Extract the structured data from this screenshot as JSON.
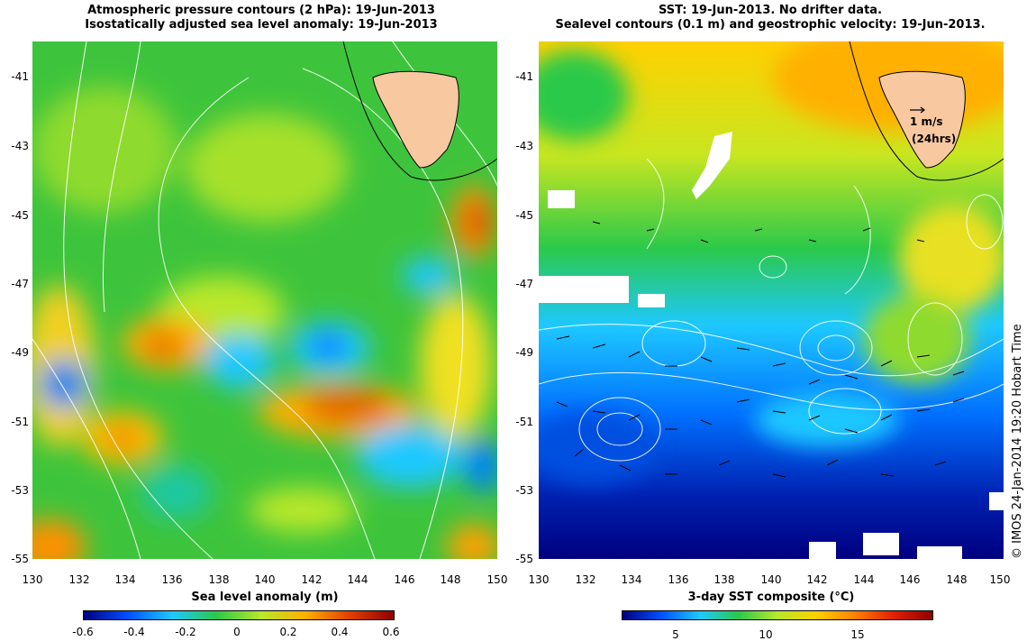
{
  "left_panel": {
    "title_line1": "Atmospheric pressure contours (2 hPa): 19-Jun-2013",
    "title_line2": "Isostatically adjusted sea level anomaly: 19-Jun-2013",
    "x_axis_label": "Sea level anomaly (m)",
    "colorbar_ticks": [
      "-0.6",
      "-0.4",
      "-0.2",
      "0",
      "0.2",
      "0.4",
      "0.6"
    ],
    "colorbar_colors": [
      "#00007f",
      "#0050ff",
      "#1ec8ff",
      "#2bc94a",
      "#b8e82a",
      "#ffb000",
      "#e04000",
      "#8f0000"
    ]
  },
  "right_panel": {
    "title_line1": "SST: 19-Jun-2013. No drifter data.",
    "title_line2": "Sealevel contours (0.1 m) and geostrophic velocity: 19-Jun-2013.",
    "x_axis_label": "3-day SST composite (°C)",
    "colorbar_ticks": [
      "5",
      "10",
      "15"
    ],
    "colorbar_colors": [
      "#00007f",
      "#0050ff",
      "#1ec8ff",
      "#2bc94a",
      "#b8e82a",
      "#ffd000",
      "#ff8000",
      "#e02000",
      "#8f0000"
    ],
    "velocity_scale_label": "1 m/s",
    "velocity_scale_sublabel": "(24hrs)"
  },
  "axes": {
    "latitudes": [
      "-41",
      "-43",
      "-45",
      "-47",
      "-49",
      "-51",
      "-53",
      "-55"
    ],
    "longitudes": [
      "130",
      "132",
      "134",
      "136",
      "138",
      "140",
      "142",
      "144",
      "146",
      "148",
      "150"
    ]
  },
  "credit": "© IMOS 24-Jan-2014 19:20 Hobart Time",
  "colors": {
    "land": "#f8c8a0",
    "no_data": "#ffffff"
  }
}
